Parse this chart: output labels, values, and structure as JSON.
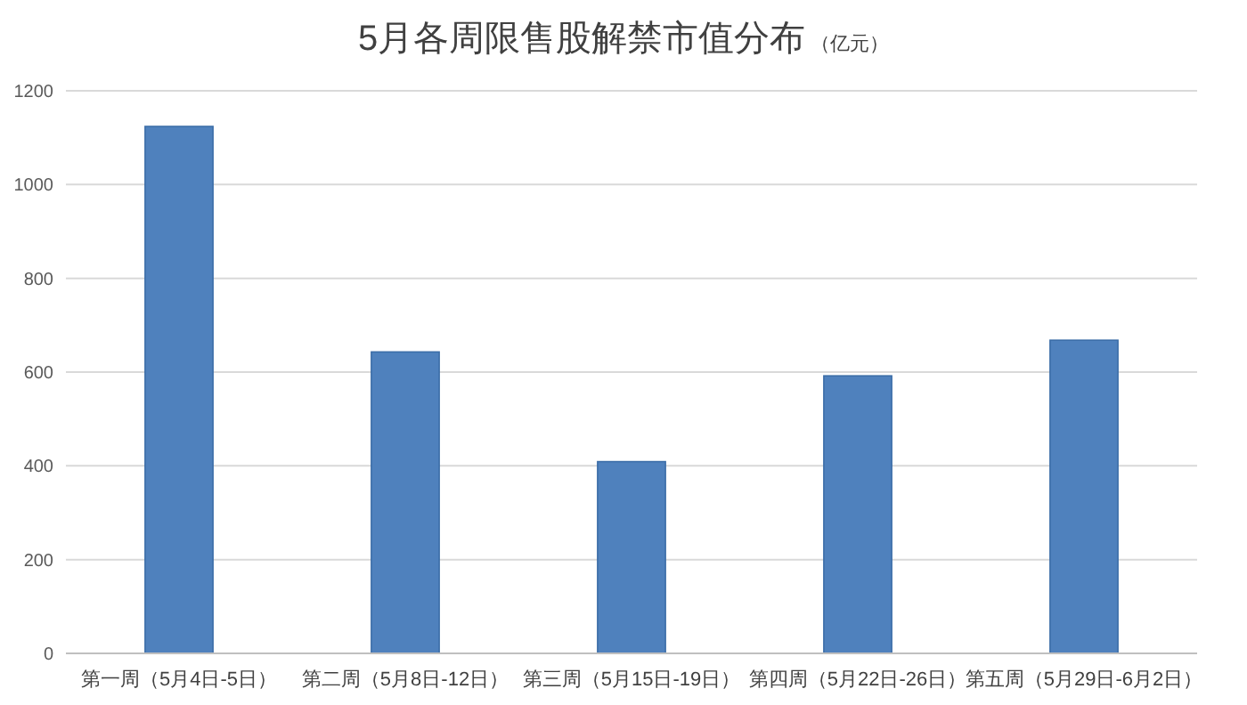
{
  "chart_data": {
    "type": "bar",
    "title": "5月各周限售股解禁市值分布",
    "subtitle": "（亿元）",
    "categories": [
      "第一周（5月4日-5日）",
      "第二周（5月8日-12日）",
      "第三周（5月15日-19日）",
      "第四周（5月22日-26日）",
      "第五周（5月29日-6月2日）"
    ],
    "values": [
      1124,
      643,
      409,
      592,
      668
    ],
    "color": "#4f81bd",
    "ylim": [
      0,
      1200
    ],
    "yticks": [
      0,
      200,
      400,
      600,
      800,
      1000,
      1200
    ],
    "grid": "y"
  }
}
